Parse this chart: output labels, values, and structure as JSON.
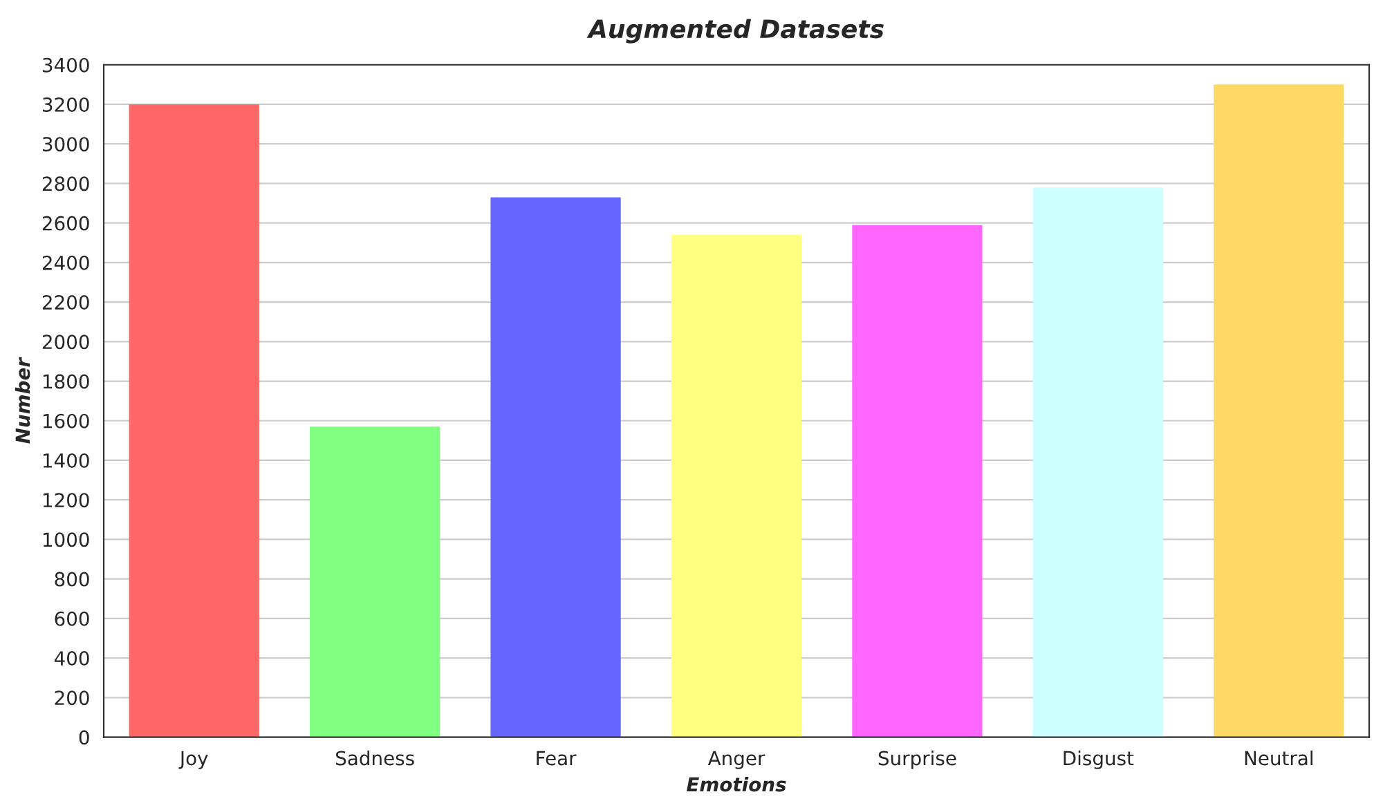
{
  "chart_data": {
    "type": "bar",
    "title": "Augmented Datasets",
    "xlabel": "Emotions",
    "ylabel": "Number",
    "categories": [
      "Joy",
      "Sadness",
      "Fear",
      "Anger",
      "Surprise",
      "Disgust",
      "Neutral"
    ],
    "values": [
      3200,
      1570,
      2730,
      2540,
      2590,
      2780,
      3300
    ],
    "colors": [
      "#ff6666",
      "#80ff80",
      "#6666ff",
      "#ffff80",
      "#ff66ff",
      "#ccffff",
      "#ffd966"
    ],
    "ylim": [
      0,
      3400
    ],
    "yticks": [
      0,
      200,
      400,
      600,
      800,
      1000,
      1200,
      1400,
      1600,
      1800,
      2000,
      2200,
      2400,
      2600,
      2800,
      3000,
      3200,
      3400
    ],
    "grid": "y"
  }
}
